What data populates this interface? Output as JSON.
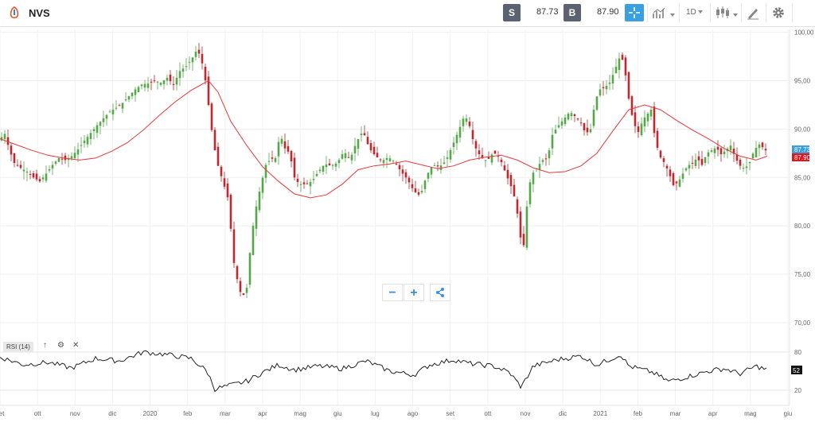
{
  "toolbar": {
    "ticker": "NVS",
    "sell_label": "S",
    "sell_price": "87.73",
    "buy_label": "B",
    "buy_price": "87.90",
    "interval": "1D",
    "accent_color": "#3b9ee0",
    "icons": [
      "etoro-logo-icon",
      "crosshair-icon",
      "chart-type-icon",
      "candles-icon",
      "draw-icon",
      "gear-icon"
    ]
  },
  "zoom": {
    "minus": "−",
    "plus": "+",
    "share_icon": "share-icon"
  },
  "indicator": {
    "label": "RSI (14)",
    "value_badge": "52",
    "levels": [
      "80",
      "20"
    ]
  },
  "price_badges": {
    "sell": "87.73",
    "buy": "87.90"
  },
  "chart_data": {
    "type": "candlestick",
    "y_ticks": [
      "100,00",
      "95,00",
      "90,00",
      "85,00",
      "80,00",
      "75,00",
      "70,00"
    ],
    "ylim": [
      69.5,
      100.3
    ],
    "x_labels": [
      "set",
      "ott",
      "nov",
      "dic",
      "2020",
      "feb",
      "mar",
      "apr",
      "mag",
      "giu",
      "lug",
      "ago",
      "set",
      "ott",
      "nov",
      "dic",
      "2021",
      "feb",
      "mar",
      "apr",
      "mag",
      "giu"
    ],
    "moving_average_color": "#e8383d",
    "up_color": "#55a84a",
    "down_color": "#c2272d",
    "price_path": [
      [
        0,
        89.0
      ],
      [
        6,
        89.5
      ],
      [
        12,
        87.8
      ],
      [
        18,
        86.5
      ],
      [
        26,
        86.0
      ],
      [
        34,
        85.6
      ],
      [
        42,
        85.0
      ],
      [
        50,
        84.6
      ],
      [
        58,
        85.4
      ],
      [
        66,
        86.3
      ],
      [
        74,
        87.0
      ],
      [
        82,
        86.8
      ],
      [
        90,
        87.2
      ],
      [
        98,
        87.9
      ],
      [
        106,
        88.8
      ],
      [
        114,
        89.6
      ],
      [
        122,
        90.4
      ],
      [
        130,
        91.1
      ],
      [
        138,
        91.8
      ],
      [
        146,
        92.2
      ],
      [
        154,
        92.7
      ],
      [
        162,
        93.4
      ],
      [
        170,
        94.1
      ],
      [
        178,
        94.6
      ],
      [
        186,
        94.7
      ],
      [
        194,
        95.0
      ],
      [
        202,
        94.8
      ],
      [
        210,
        95.3
      ],
      [
        218,
        94.6
      ],
      [
        226,
        96.0
      ],
      [
        234,
        96.5
      ],
      [
        242,
        97.4
      ],
      [
        248,
        98.3
      ],
      [
        256,
        96.3
      ],
      [
        262,
        92.5
      ],
      [
        268,
        88.6
      ],
      [
        274,
        86.2
      ],
      [
        280,
        84.6
      ],
      [
        288,
        82.4
      ],
      [
        292,
        77.0
      ],
      [
        298,
        74.5
      ],
      [
        304,
        72.5
      ],
      [
        310,
        73.6
      ],
      [
        316,
        79.0
      ],
      [
        322,
        82.0
      ],
      [
        328,
        84.3
      ],
      [
        334,
        86.3
      ],
      [
        340,
        86.9
      ],
      [
        346,
        87.0
      ],
      [
        352,
        89.5
      ],
      [
        358,
        88.0
      ],
      [
        364,
        87.5
      ],
      [
        370,
        85.0
      ],
      [
        376,
        84.3
      ],
      [
        384,
        84.3
      ],
      [
        392,
        84.6
      ],
      [
        400,
        85.6
      ],
      [
        408,
        86.4
      ],
      [
        416,
        86.2
      ],
      [
        424,
        86.5
      ],
      [
        432,
        87.7
      ],
      [
        440,
        86.9
      ],
      [
        448,
        88.7
      ],
      [
        456,
        89.8
      ],
      [
        464,
        88.0
      ],
      [
        472,
        87.2
      ],
      [
        480,
        86.7
      ],
      [
        488,
        87.1
      ],
      [
        496,
        86.6
      ],
      [
        504,
        85.6
      ],
      [
        512,
        84.8
      ],
      [
        520,
        83.6
      ],
      [
        528,
        83.1
      ],
      [
        536,
        85.2
      ],
      [
        544,
        86.3
      ],
      [
        552,
        86.1
      ],
      [
        560,
        86.7
      ],
      [
        568,
        88.2
      ],
      [
        576,
        89.8
      ],
      [
        584,
        91.5
      ],
      [
        590,
        90.3
      ],
      [
        596,
        88.3
      ],
      [
        604,
        87.1
      ],
      [
        612,
        86.7
      ],
      [
        620,
        87.6
      ],
      [
        628,
        87.0
      ],
      [
        636,
        85.3
      ],
      [
        642,
        84.1
      ],
      [
        648,
        82.5
      ],
      [
        654,
        78.8
      ],
      [
        658,
        78.0
      ],
      [
        664,
        84.0
      ],
      [
        670,
        85.5
      ],
      [
        676,
        86.2
      ],
      [
        682,
        86.8
      ],
      [
        688,
        87.0
      ],
      [
        694,
        89.4
      ],
      [
        700,
        90.2
      ],
      [
        708,
        91.0
      ],
      [
        716,
        91.8
      ],
      [
        724,
        91.2
      ],
      [
        730,
        90.6
      ],
      [
        736,
        89.5
      ],
      [
        742,
        90.0
      ],
      [
        748,
        93.0
      ],
      [
        754,
        94.1
      ],
      [
        760,
        94.3
      ],
      [
        766,
        94.8
      ],
      [
        772,
        96.0
      ],
      [
        778,
        97.3
      ],
      [
        784,
        97.1
      ],
      [
        788,
        94.0
      ],
      [
        792,
        92.3
      ],
      [
        796,
        90.6
      ],
      [
        802,
        89.7
      ],
      [
        808,
        91.0
      ],
      [
        814,
        91.6
      ],
      [
        818,
        92.0
      ],
      [
        822,
        89.6
      ],
      [
        828,
        87.3
      ],
      [
        834,
        86.6
      ],
      [
        840,
        85.6
      ],
      [
        846,
        84.2
      ],
      [
        852,
        84.5
      ],
      [
        858,
        85.4
      ],
      [
        864,
        86.2
      ],
      [
        870,
        86.5
      ],
      [
        876,
        87.0
      ],
      [
        882,
        86.3
      ],
      [
        888,
        87.5
      ],
      [
        894,
        87.8
      ],
      [
        900,
        88.1
      ],
      [
        906,
        87.4
      ],
      [
        912,
        87.8
      ],
      [
        918,
        88.3
      ],
      [
        924,
        87.0
      ],
      [
        930,
        86.2
      ],
      [
        936,
        85.9
      ],
      [
        942,
        86.6
      ],
      [
        948,
        87.9
      ],
      [
        954,
        88.4
      ],
      [
        960,
        88.0
      ],
      [
        964,
        87.6
      ]
    ],
    "moving_average": [
      [
        0,
        89.0
      ],
      [
        20,
        88.4
      ],
      [
        40,
        87.8
      ],
      [
        60,
        87.3
      ],
      [
        80,
        87.0
      ],
      [
        100,
        86.8
      ],
      [
        120,
        87.0
      ],
      [
        140,
        87.7
      ],
      [
        160,
        88.6
      ],
      [
        180,
        89.9
      ],
      [
        200,
        91.4
      ],
      [
        220,
        92.8
      ],
      [
        240,
        94.0
      ],
      [
        262,
        95.0
      ],
      [
        274,
        93.8
      ],
      [
        290,
        90.8
      ],
      [
        310,
        88.3
      ],
      [
        330,
        86.1
      ],
      [
        350,
        84.6
      ],
      [
        370,
        83.3
      ],
      [
        390,
        82.9
      ],
      [
        410,
        83.2
      ],
      [
        430,
        84.3
      ],
      [
        450,
        85.8
      ],
      [
        470,
        86.2
      ],
      [
        490,
        86.4
      ],
      [
        510,
        86.7
      ],
      [
        530,
        86.3
      ],
      [
        550,
        85.9
      ],
      [
        570,
        86.2
      ],
      [
        590,
        86.8
      ],
      [
        610,
        87.1
      ],
      [
        630,
        87.3
      ],
      [
        650,
        86.8
      ],
      [
        670,
        86.0
      ],
      [
        690,
        85.5
      ],
      [
        710,
        85.6
      ],
      [
        730,
        86.2
      ],
      [
        750,
        87.5
      ],
      [
        770,
        89.8
      ],
      [
        790,
        92.0
      ],
      [
        810,
        92.5
      ],
      [
        830,
        92.0
      ],
      [
        850,
        90.9
      ],
      [
        870,
        89.9
      ],
      [
        890,
        89.0
      ],
      [
        910,
        88.0
      ],
      [
        930,
        87.2
      ],
      [
        950,
        86.8
      ],
      [
        964,
        87.2
      ]
    ],
    "rsi_path": [
      [
        0,
        72
      ],
      [
        30,
        60
      ],
      [
        60,
        64
      ],
      [
        90,
        55
      ],
      [
        120,
        70
      ],
      [
        150,
        66
      ],
      [
        180,
        80
      ],
      [
        210,
        76
      ],
      [
        240,
        70
      ],
      [
        260,
        50
      ],
      [
        270,
        22
      ],
      [
        290,
        28
      ],
      [
        310,
        34
      ],
      [
        330,
        48
      ],
      [
        350,
        60
      ],
      [
        370,
        52
      ],
      [
        400,
        58
      ],
      [
        430,
        54
      ],
      [
        460,
        66
      ],
      [
        490,
        50
      ],
      [
        520,
        44
      ],
      [
        540,
        60
      ],
      [
        570,
        68
      ],
      [
        590,
        62
      ],
      [
        620,
        58
      ],
      [
        640,
        48
      ],
      [
        655,
        25
      ],
      [
        670,
        58
      ],
      [
        700,
        68
      ],
      [
        730,
        74
      ],
      [
        750,
        60
      ],
      [
        780,
        76
      ],
      [
        790,
        58
      ],
      [
        820,
        48
      ],
      [
        840,
        34
      ],
      [
        860,
        40
      ],
      [
        890,
        50
      ],
      [
        910,
        54
      ],
      [
        930,
        46
      ],
      [
        950,
        58
      ],
      [
        964,
        52
      ]
    ]
  }
}
